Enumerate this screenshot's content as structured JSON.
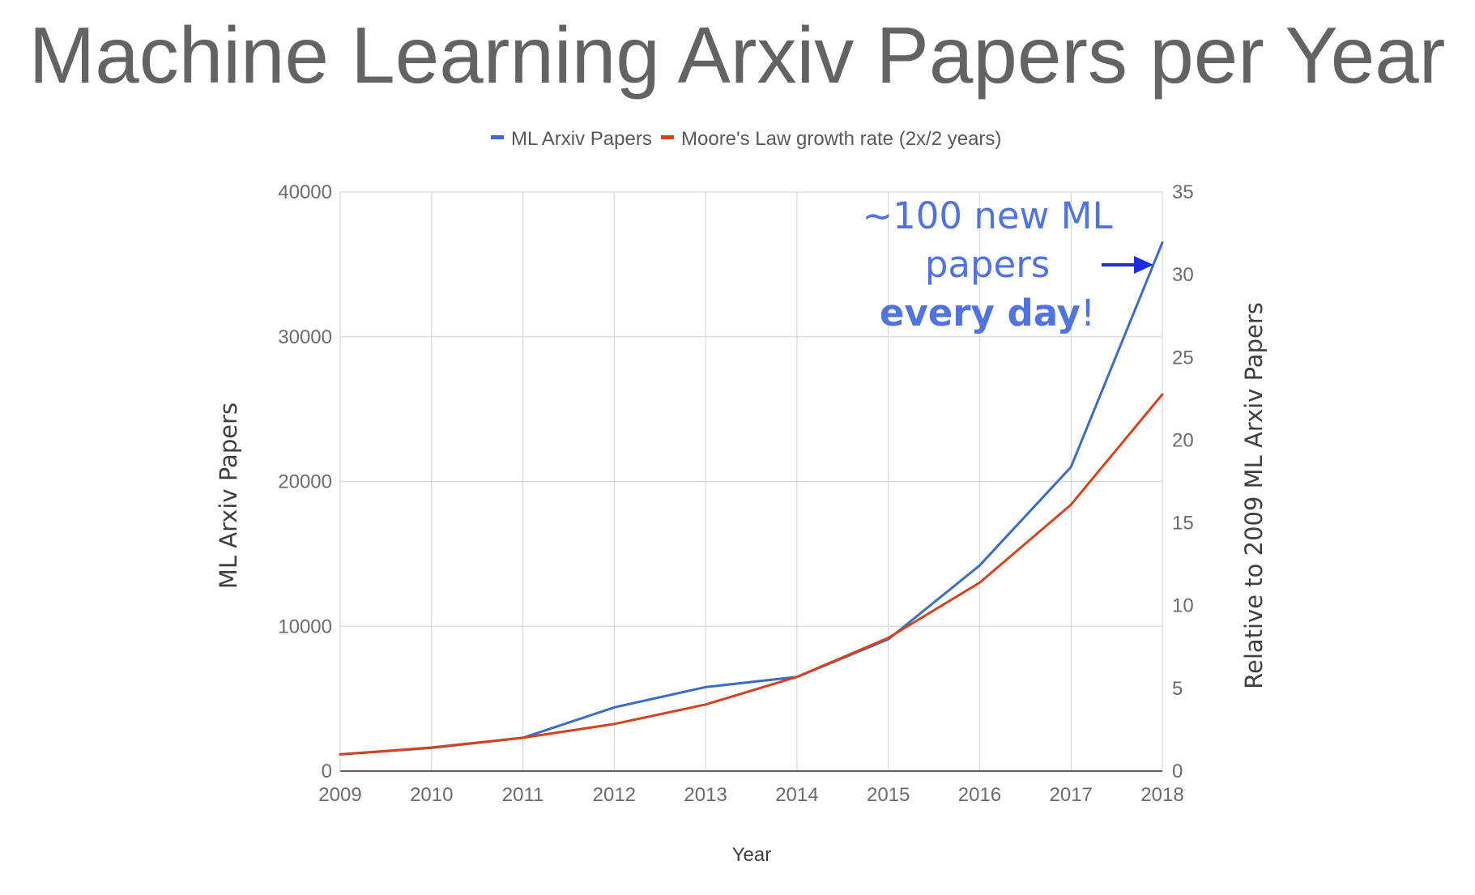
{
  "chart_data": {
    "type": "line",
    "title": "Machine Learning Arxiv Papers per Year",
    "xlabel": "Year",
    "ylabel": "ML Arxiv Papers",
    "y2label": "Relative to 2009 ML Arxiv Papers",
    "x": [
      "2009",
      "2010",
      "2011",
      "2012",
      "2013",
      "2014",
      "2015",
      "2016",
      "2017",
      "2018"
    ],
    "ylim": [
      0,
      40000
    ],
    "yticks": [
      "0",
      "10000",
      "20000",
      "30000",
      "40000"
    ],
    "y2lim": [
      0,
      35
    ],
    "y2ticks": [
      "0",
      "5",
      "10",
      "15",
      "20",
      "25",
      "30",
      "35"
    ],
    "grid": true,
    "legend_position": "top",
    "series": [
      {
        "name": "ML Arxiv Papers",
        "color": "#3c6cc4",
        "values": [
          1150,
          1600,
          2300,
          4400,
          5800,
          6500,
          9100,
          14200,
          21000,
          36500
        ]
      },
      {
        "name": "Moore's Law growth rate (2x/2 years)",
        "color": "#d4421e",
        "values": [
          1150,
          1626,
          2300,
          3253,
          4600,
          6505,
          9200,
          13011,
          18400,
          26022
        ]
      }
    ],
    "annotation": {
      "line1": "~100 new ML",
      "line2": "papers",
      "line3_bold": "every day",
      "line3_rest": "!",
      "color": "#4f73e3",
      "arrow_color": "#1a2ee0",
      "points_to_year": "2018"
    }
  }
}
